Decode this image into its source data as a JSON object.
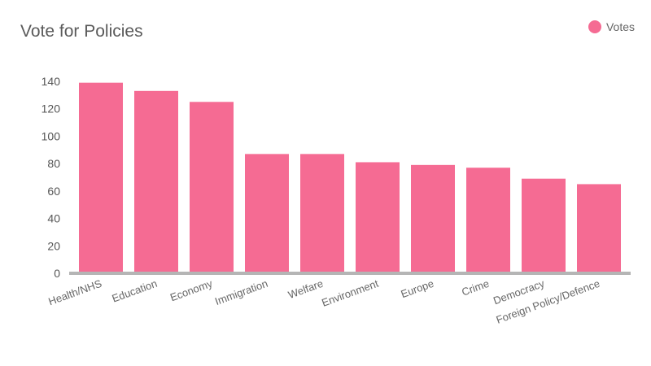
{
  "chart_data": {
    "type": "bar",
    "title": "Vote for Policies",
    "xlabel": "",
    "ylabel": "",
    "categories": [
      "Health/NHS",
      "Education",
      "Economy",
      "Immigration",
      "Welfare",
      "Environment",
      "Europe",
      "Crime",
      "Democracy",
      "Foreign Policy/Defence"
    ],
    "series": [
      {
        "name": "Votes",
        "values": [
          139,
          133,
          125,
          87,
          87,
          81,
          79,
          77,
          69,
          65
        ]
      }
    ],
    "ylim": [
      0,
      140
    ],
    "yticks": [
      0,
      20,
      40,
      60,
      80,
      100,
      120,
      140
    ],
    "grid": false,
    "legend_position": "top-right",
    "colors": {
      "bar": "#f56b93",
      "axis": "#b5b5b5",
      "tick_text": "#555555",
      "category_text": "#666666"
    }
  }
}
